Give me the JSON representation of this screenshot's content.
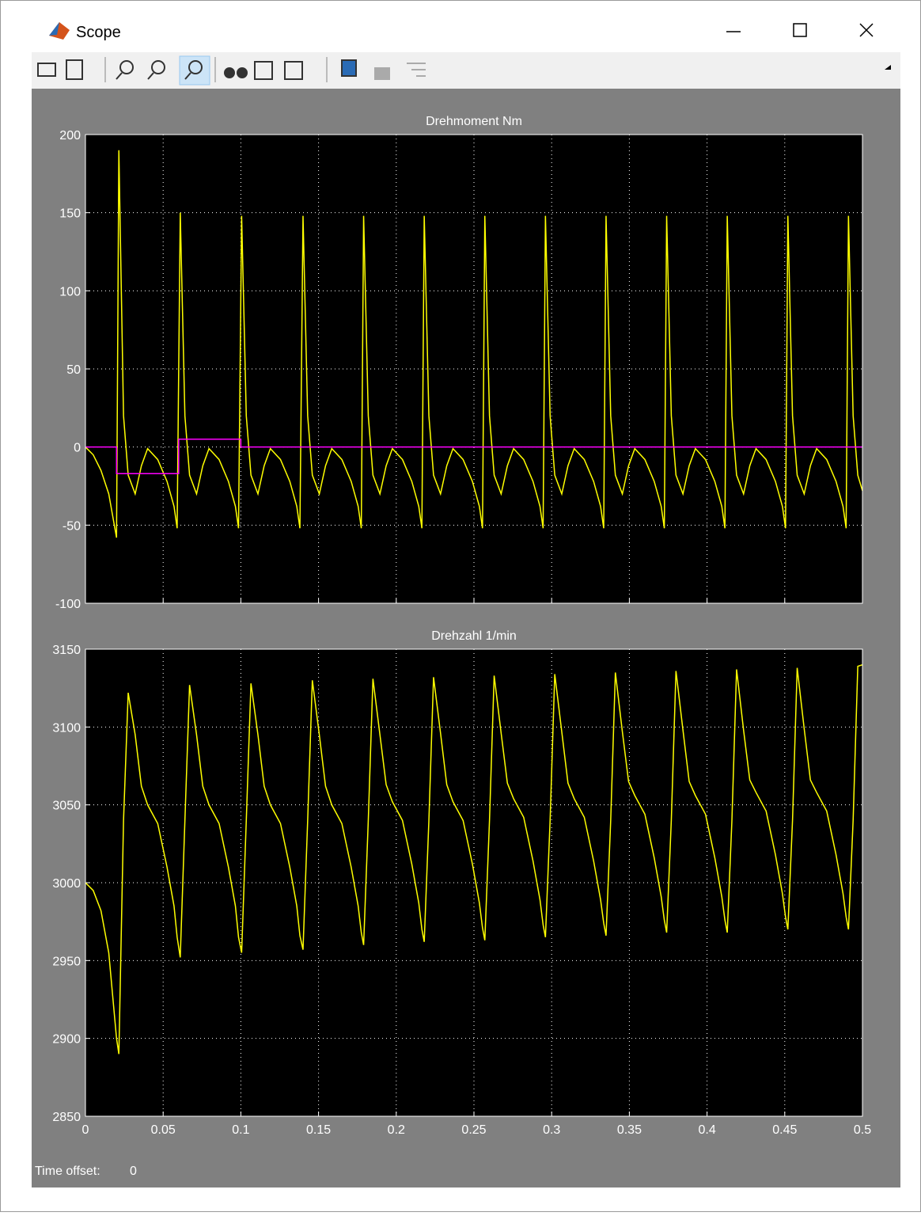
{
  "window": {
    "title": "Scope"
  },
  "chart_data": [
    {
      "type": "line",
      "title": "Drehmoment Nm",
      "xlim": [
        0,
        0.5
      ],
      "xticks": [
        0,
        0.05,
        0.1,
        0.15,
        0.2,
        0.25,
        0.3,
        0.35,
        0.4,
        0.45,
        0.5
      ],
      "ylim": [
        -100,
        200
      ],
      "yticks": [
        -100,
        -50,
        0,
        50,
        100,
        150,
        200
      ],
      "grid": true,
      "series": [
        {
          "color": "#ffff00",
          "x": [
            0,
            0.005,
            0.01,
            0.015,
            0.02,
            0.0215,
            0.0245,
            0.0275,
            0.032,
            0.036,
            0.04,
            0.0465,
            0.0525,
            0.057,
            0.059,
            0.061,
            0.064,
            0.067,
            0.0715,
            0.0755,
            0.0795,
            0.086,
            0.092,
            0.0965,
            0.0985,
            0.1005,
            0.1035,
            0.1065,
            0.111,
            0.115,
            0.119,
            0.1255,
            0.1315,
            0.136,
            0.138,
            0.14,
            0.143,
            0.146,
            0.1505,
            0.1545,
            0.1585,
            0.165,
            0.171,
            0.1755,
            0.1775,
            0.179,
            0.182,
            0.185,
            0.1895,
            0.1935,
            0.1975,
            0.204,
            0.21,
            0.2145,
            0.2165,
            0.218,
            0.221,
            0.224,
            0.2285,
            0.2325,
            0.2365,
            0.243,
            0.249,
            0.2535,
            0.2555,
            0.257,
            0.26,
            0.263,
            0.2675,
            0.2715,
            0.2755,
            0.282,
            0.288,
            0.2925,
            0.2945,
            0.296,
            0.299,
            0.302,
            0.3065,
            0.3105,
            0.3145,
            0.321,
            0.327,
            0.3315,
            0.3335,
            0.335,
            0.338,
            0.341,
            0.3455,
            0.3495,
            0.3535,
            0.36,
            0.366,
            0.3705,
            0.3725,
            0.374,
            0.377,
            0.38,
            0.3845,
            0.3885,
            0.3925,
            0.399,
            0.405,
            0.4095,
            0.4115,
            0.413,
            0.416,
            0.419,
            0.4235,
            0.4275,
            0.4315,
            0.438,
            0.444,
            0.4485,
            0.4505,
            0.452,
            0.455,
            0.458,
            0.4625,
            0.4665,
            0.4705,
            0.477,
            0.483,
            0.4875,
            0.4895,
            0.491,
            0.494,
            0.497,
            0.5
          ],
          "values": [
            0,
            -5,
            -15,
            -30,
            -58,
            190,
            20,
            -18,
            -30,
            -12,
            -1,
            -8,
            -22,
            -38,
            -52,
            150,
            20,
            -18,
            -30,
            -12,
            -1,
            -8,
            -22,
            -38,
            -52,
            148,
            20,
            -18,
            -30,
            -12,
            -1,
            -8,
            -22,
            -38,
            -52,
            148,
            20,
            -18,
            -30,
            -12,
            -1,
            -8,
            -22,
            -38,
            -52,
            148,
            20,
            -18,
            -30,
            -12,
            -1,
            -8,
            -22,
            -38,
            -52,
            148,
            20,
            -18,
            -30,
            -12,
            -1,
            -8,
            -22,
            -38,
            -52,
            148,
            20,
            -18,
            -30,
            -12,
            -1,
            -8,
            -22,
            -38,
            -52,
            148,
            20,
            -18,
            -30,
            -12,
            -1,
            -8,
            -22,
            -38,
            -52,
            148,
            20,
            -18,
            -30,
            -12,
            -1,
            -8,
            -22,
            -38,
            -52,
            148,
            20,
            -18,
            -30,
            -12,
            -1,
            -8,
            -22,
            -38,
            -52,
            148,
            20,
            -18,
            -30,
            -12,
            -1,
            -8,
            -22,
            -38,
            -52,
            148,
            20,
            -18,
            -30,
            -12,
            -1,
            -8,
            -22,
            -38,
            -52,
            148,
            20,
            -18,
            -28
          ]
        },
        {
          "color": "#ff00ff",
          "x": [
            0,
            0.02,
            0.02,
            0.06,
            0.06,
            0.1,
            0.1,
            0.5
          ],
          "values": [
            0,
            0,
            -17,
            -17,
            5,
            5,
            0,
            0
          ]
        }
      ]
    },
    {
      "type": "line",
      "title": "Drehzahl 1/min",
      "xlim": [
        0,
        0.5
      ],
      "xticks": [
        0,
        0.05,
        0.1,
        0.15,
        0.2,
        0.25,
        0.3,
        0.35,
        0.4,
        0.45,
        0.5
      ],
      "ylim": [
        2850,
        3150
      ],
      "yticks": [
        2850,
        2900,
        2950,
        3000,
        3050,
        3100,
        3150
      ],
      "grid": true,
      "series": [
        {
          "color": "#ffff00",
          "x": [
            0,
            0.005,
            0.01,
            0.015,
            0.02,
            0.0215,
            0.0245,
            0.0275,
            0.032,
            0.036,
            0.04,
            0.0465,
            0.0525,
            0.057,
            0.059,
            0.061,
            0.064,
            0.067,
            0.0715,
            0.0755,
            0.0795,
            0.086,
            0.092,
            0.0965,
            0.0985,
            0.1005,
            0.1035,
            0.1065,
            0.111,
            0.115,
            0.119,
            0.1255,
            0.1315,
            0.136,
            0.138,
            0.14,
            0.143,
            0.146,
            0.1505,
            0.1545,
            0.1585,
            0.165,
            0.171,
            0.1755,
            0.1775,
            0.179,
            0.182,
            0.185,
            0.1895,
            0.1935,
            0.1975,
            0.204,
            0.21,
            0.2145,
            0.2165,
            0.218,
            0.221,
            0.224,
            0.2285,
            0.2325,
            0.2365,
            0.243,
            0.249,
            0.2535,
            0.2555,
            0.257,
            0.26,
            0.263,
            0.2675,
            0.2715,
            0.2755,
            0.282,
            0.288,
            0.2925,
            0.2945,
            0.296,
            0.299,
            0.302,
            0.3065,
            0.3105,
            0.3145,
            0.321,
            0.327,
            0.3315,
            0.3335,
            0.335,
            0.338,
            0.341,
            0.3455,
            0.3495,
            0.3535,
            0.36,
            0.366,
            0.3705,
            0.3725,
            0.374,
            0.377,
            0.38,
            0.3845,
            0.3885,
            0.3925,
            0.399,
            0.405,
            0.4095,
            0.4115,
            0.413,
            0.416,
            0.419,
            0.4235,
            0.4275,
            0.4315,
            0.438,
            0.444,
            0.4485,
            0.4505,
            0.452,
            0.455,
            0.458,
            0.4625,
            0.4665,
            0.4705,
            0.477,
            0.483,
            0.4875,
            0.4895,
            0.491,
            0.494,
            0.497,
            0.5
          ],
          "values": [
            3000,
            2995,
            2982,
            2955,
            2900,
            2890,
            3040,
            3122,
            3095,
            3062,
            3050,
            3038,
            3010,
            2985,
            2965,
            2952,
            3040,
            3127,
            3095,
            3062,
            3050,
            3038,
            3010,
            2985,
            2965,
            2955,
            3040,
            3128,
            3095,
            3062,
            3050,
            3038,
            3010,
            2985,
            2966,
            2957,
            3040,
            3130,
            3095,
            3062,
            3050,
            3038,
            3010,
            2985,
            2968,
            2960,
            3040,
            3131,
            3095,
            3063,
            3052,
            3040,
            3012,
            2987,
            2970,
            2962,
            3040,
            3132,
            3096,
            3063,
            3052,
            3040,
            3012,
            2987,
            2971,
            2963,
            3040,
            3133,
            3096,
            3064,
            3054,
            3042,
            3014,
            2989,
            2973,
            2965,
            3040,
            3134,
            3097,
            3064,
            3054,
            3042,
            3014,
            2989,
            2974,
            2966,
            3040,
            3135,
            3097,
            3065,
            3056,
            3044,
            3016,
            2991,
            2976,
            2968,
            3040,
            3136,
            3098,
            3065,
            3056,
            3044,
            3016,
            2991,
            2976,
            2968,
            3040,
            3137,
            3098,
            3066,
            3058,
            3046,
            3018,
            2993,
            2978,
            2970,
            3040,
            3138,
            3099,
            3066,
            3058,
            3046,
            3018,
            2993,
            2978,
            2970,
            3040,
            3139,
            3140
          ]
        }
      ]
    }
  ],
  "time_offset": {
    "label": "Time offset:",
    "value": 0
  }
}
